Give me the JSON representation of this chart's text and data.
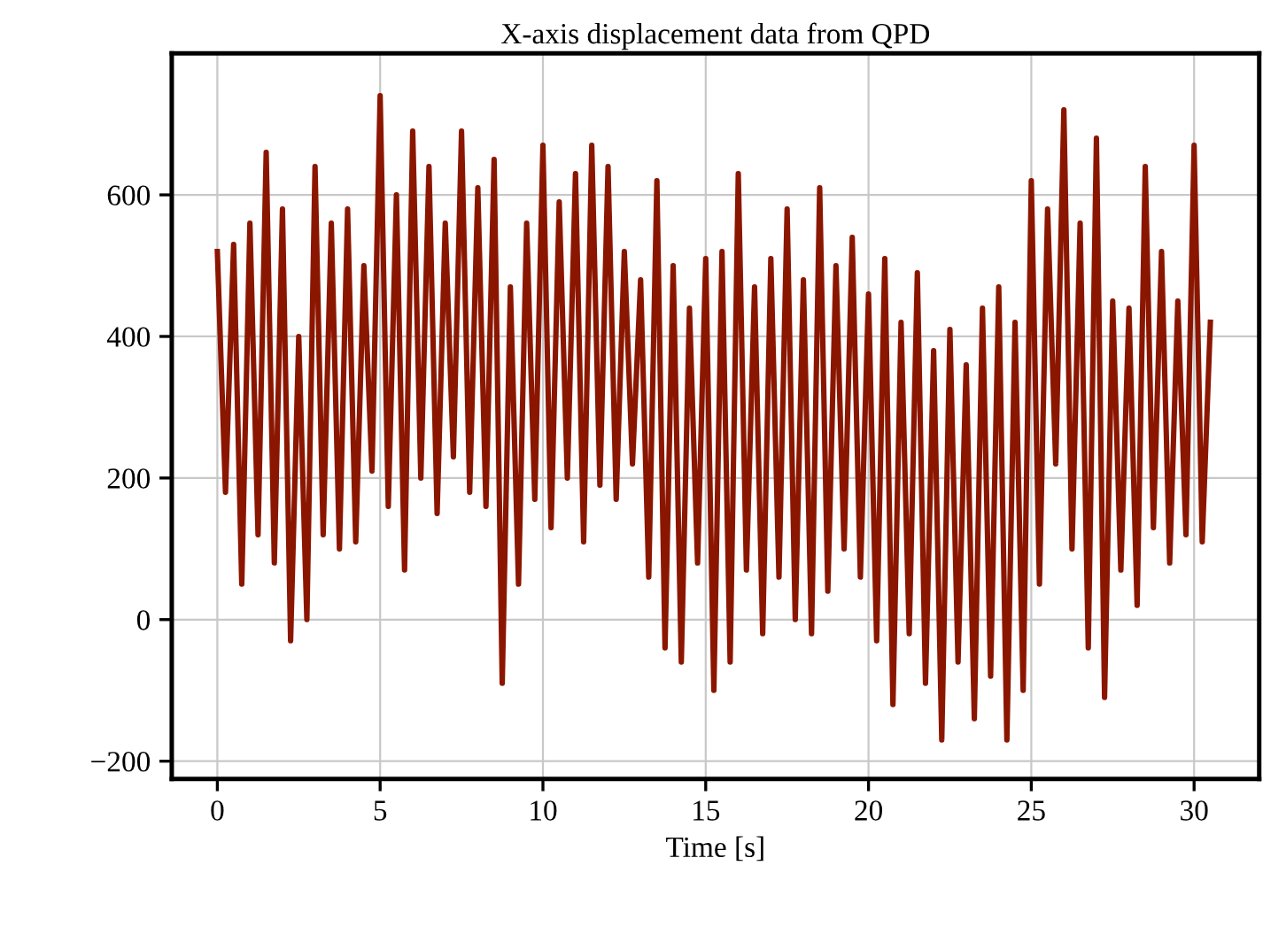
{
  "chart_data": {
    "type": "line",
    "title": "X-axis displacement data from QPD",
    "xlabel": "Time [s]",
    "x": [
      0,
      0.25,
      0.5,
      0.75,
      1.0,
      1.25,
      1.5,
      1.75,
      2.0,
      2.25,
      2.5,
      2.75,
      3.0,
      3.25,
      3.5,
      3.75,
      4.0,
      4.25,
      4.5,
      4.75,
      5.0,
      5.25,
      5.5,
      5.75,
      6.0,
      6.25,
      6.5,
      6.75,
      7.0,
      7.25,
      7.5,
      7.75,
      8.0,
      8.25,
      8.5,
      8.75,
      9.0,
      9.25,
      9.5,
      9.75,
      10.0,
      10.25,
      10.5,
      10.75,
      11.0,
      11.25,
      11.5,
      11.75,
      12.0,
      12.25,
      12.5,
      12.75,
      13.0,
      13.25,
      13.5,
      13.75,
      14.0,
      14.25,
      14.5,
      14.75,
      15.0,
      15.25,
      15.5,
      15.75,
      16.0,
      16.25,
      16.5,
      16.75,
      17.0,
      17.25,
      17.5,
      17.75,
      18.0,
      18.25,
      18.5,
      18.75,
      19.0,
      19.25,
      19.5,
      19.75,
      20.0,
      20.25,
      20.5,
      20.75,
      21.0,
      21.25,
      21.5,
      21.75,
      22.0,
      22.25,
      22.5,
      22.75,
      23.0,
      23.25,
      23.5,
      23.75,
      24.0,
      24.25,
      24.5,
      24.75,
      25.0,
      25.25,
      25.5,
      25.75,
      26.0,
      26.25,
      26.5,
      26.75,
      27.0,
      27.25,
      27.5,
      27.75,
      28.0,
      28.25,
      28.5,
      28.75,
      29.0,
      29.25,
      29.5,
      29.75,
      30.0,
      30.25,
      30.5
    ],
    "series": [
      {
        "color": "#8b1600",
        "values": [
          520,
          180,
          530,
          50,
          560,
          120,
          660,
          80,
          580,
          -30,
          400,
          0,
          640,
          120,
          560,
          100,
          580,
          110,
          500,
          210,
          740,
          160,
          600,
          70,
          690,
          200,
          640,
          150,
          560,
          230,
          690,
          180,
          610,
          160,
          650,
          -90,
          470,
          50,
          560,
          170,
          670,
          130,
          590,
          200,
          630,
          110,
          670,
          190,
          640,
          170,
          520,
          220,
          480,
          60,
          620,
          -40,
          500,
          -60,
          440,
          80,
          510,
          -100,
          520,
          -60,
          630,
          70,
          470,
          -20,
          510,
          60,
          580,
          0,
          480,
          -20,
          610,
          40,
          500,
          100,
          540,
          60,
          460,
          -30,
          510,
          -120,
          420,
          -20,
          490,
          -90,
          380,
          -170,
          410,
          -60,
          360,
          -140,
          440,
          -80,
          470,
          -170,
          420,
          -100,
          620,
          50,
          580,
          220,
          720,
          100,
          560,
          -40,
          680,
          -110,
          450,
          70,
          440,
          20,
          640,
          130,
          520,
          80,
          450,
          120,
          670,
          110,
          420
        ]
      }
    ],
    "xlim": [
      -1.4,
      32.0
    ],
    "ylim": [
      -225,
      800
    ],
    "xticks": [
      0,
      5,
      10,
      15,
      20,
      25,
      30
    ],
    "yticks": [
      {
        "value": -200,
        "label": "−200"
      },
      0,
      200,
      400,
      600
    ],
    "grid": true,
    "line_style": "solid",
    "marker": "none"
  }
}
